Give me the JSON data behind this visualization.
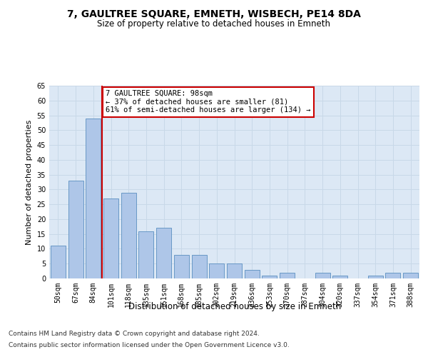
{
  "title": "7, GAULTREE SQUARE, EMNETH, WISBECH, PE14 8DA",
  "subtitle": "Size of property relative to detached houses in Emneth",
  "xlabel": "Distribution of detached houses by size in Emneth",
  "ylabel": "Number of detached properties",
  "categories": [
    "50sqm",
    "67sqm",
    "84sqm",
    "101sqm",
    "118sqm",
    "135sqm",
    "151sqm",
    "168sqm",
    "185sqm",
    "202sqm",
    "219sqm",
    "236sqm",
    "253sqm",
    "270sqm",
    "287sqm",
    "304sqm",
    "320sqm",
    "337sqm",
    "354sqm",
    "371sqm",
    "388sqm"
  ],
  "values": [
    11,
    33,
    54,
    27,
    29,
    16,
    17,
    8,
    8,
    5,
    5,
    3,
    1,
    2,
    0,
    2,
    1,
    0,
    1,
    2,
    2
  ],
  "bar_color": "#aec6e8",
  "bar_edge_color": "#5a8fc0",
  "grid_color": "#c8d8e8",
  "bg_color": "#dce8f5",
  "ref_line_color": "#cc0000",
  "annotation_box_text": "7 GAULTREE SQUARE: 98sqm\n← 37% of detached houses are smaller (81)\n61% of semi-detached houses are larger (134) →",
  "annotation_box_color": "#cc0000",
  "footer_line1": "Contains HM Land Registry data © Crown copyright and database right 2024.",
  "footer_line2": "Contains public sector information licensed under the Open Government Licence v3.0.",
  "ylim": [
    0,
    65
  ],
  "yticks": [
    0,
    5,
    10,
    15,
    20,
    25,
    30,
    35,
    40,
    45,
    50,
    55,
    60,
    65
  ],
  "title_fontsize": 10,
  "subtitle_fontsize": 8.5,
  "ylabel_fontsize": 8,
  "xlabel_fontsize": 8.5,
  "tick_fontsize": 7,
  "footer_fontsize": 6.5,
  "annotation_fontsize": 7.5
}
